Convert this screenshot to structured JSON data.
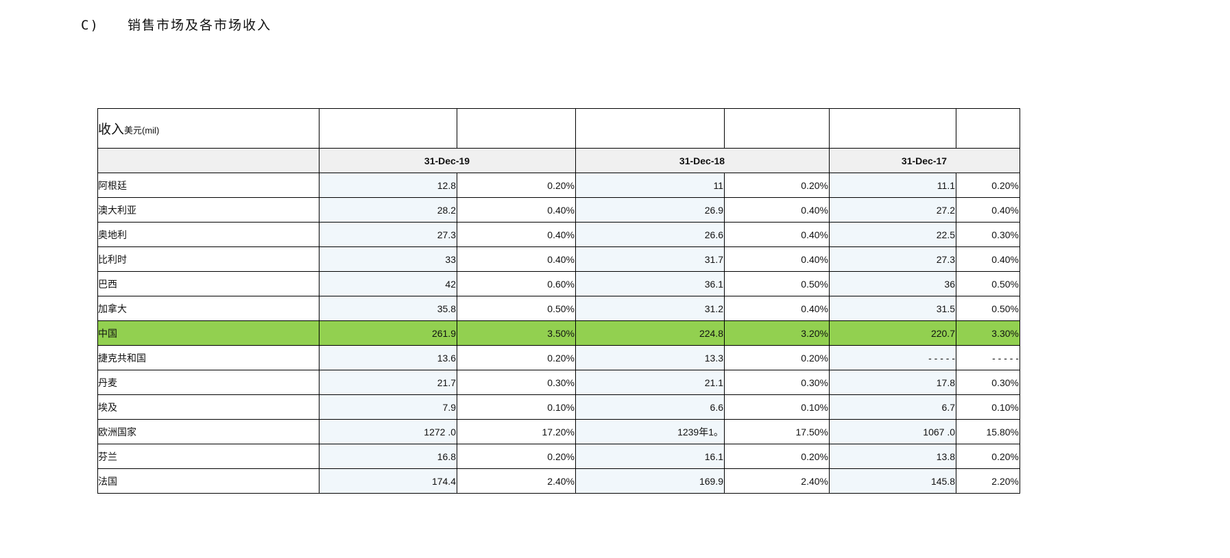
{
  "section": {
    "number": "C)",
    "title": "销售市场及各市场收入"
  },
  "table": {
    "title_main": "收入",
    "title_unit": "美元(mil)",
    "periods": [
      "31-Dec-19",
      "31-Dec-18",
      "31-Dec-17"
    ],
    "highlight_color": "#92d050",
    "rows": [
      {
        "country": "阿根廷",
        "cells": [
          "12.8",
          "0.20%",
          "11",
          "0.20%",
          "11.1",
          "0.20%"
        ]
      },
      {
        "country": "澳大利亚",
        "cells": [
          "28.2",
          "0.40%",
          "26.9",
          "0.40%",
          "27.2",
          "0.40%"
        ]
      },
      {
        "country": "奥地利",
        "cells": [
          "27.3",
          "0.40%",
          "26.6",
          "0.40%",
          "22.5",
          "0.30%"
        ]
      },
      {
        "country": "比利时",
        "cells": [
          "33",
          "0.40%",
          "31.7",
          "0.40%",
          "27.3",
          "0.40%"
        ]
      },
      {
        "country": "巴西",
        "cells": [
          "42",
          "0.60%",
          "36.1",
          "0.50%",
          "36",
          "0.50%"
        ]
      },
      {
        "country": "加拿大",
        "cells": [
          "35.8",
          "0.50%",
          "31.2",
          "0.40%",
          "31.5",
          "0.50%"
        ]
      },
      {
        "country": "中国",
        "highlight": true,
        "cells": [
          "261.9",
          "3.50%",
          "224.8",
          "3.20%",
          "220.7",
          "3.30%"
        ]
      },
      {
        "country": "捷克共和国",
        "cells": [
          "13.6",
          "0.20%",
          "13.3",
          "0.20%",
          "- - - - -",
          "- - - - -"
        ]
      },
      {
        "country": "丹麦",
        "cells": [
          "21.7",
          "0.30%",
          "21.1",
          "0.30%",
          "17.8",
          "0.30%"
        ]
      },
      {
        "country": "埃及",
        "cells": [
          "7.9",
          "0.10%",
          "6.6",
          "0.10%",
          "6.7",
          "0.10%"
        ]
      },
      {
        "country": "欧洲国家",
        "cells": [
          "1272 .0",
          "17.20%",
          "1239年1。",
          "17.50%",
          "1067 .0",
          "15.80%"
        ]
      },
      {
        "country": "芬兰",
        "cells": [
          "16.8",
          "0.20%",
          "16.1",
          "0.20%",
          "13.8",
          "0.20%"
        ]
      },
      {
        "country": "法国",
        "cells": [
          "174.4",
          "2.40%",
          "169.9",
          "2.40%",
          "145.8",
          "2.20%"
        ]
      }
    ]
  }
}
